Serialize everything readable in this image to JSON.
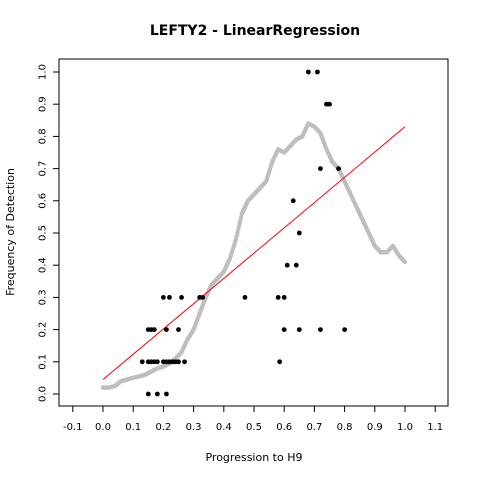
{
  "chart_data": {
    "type": "scatter",
    "title": "LEFTY2 - LinearRegression",
    "xlabel": "Progression to H9",
    "ylabel": "Frequency of Detection",
    "xlim": [
      -0.13,
      1.13
    ],
    "ylim": [
      -0.04,
      1.04
    ],
    "xticks": [
      "-0.1",
      "0.0",
      "0.1",
      "0.2",
      "0.3",
      "0.4",
      "0.5",
      "0.6",
      "0.7",
      "0.8",
      "0.9",
      "1.0",
      "1.1"
    ],
    "yticks": [
      "0.0",
      "0.1",
      "0.2",
      "0.3",
      "0.4",
      "0.5",
      "0.6",
      "0.7",
      "0.8",
      "0.9",
      "1.0"
    ],
    "grid": false,
    "legend": "none",
    "colors": {
      "points": "#000000",
      "smooth": "#bebebe",
      "regression": "#ff0000"
    },
    "points": [
      [
        0.15,
        0.0
      ],
      [
        0.18,
        0.0
      ],
      [
        0.21,
        0.0
      ],
      [
        0.13,
        0.1
      ],
      [
        0.15,
        0.1
      ],
      [
        0.16,
        0.1
      ],
      [
        0.17,
        0.1
      ],
      [
        0.18,
        0.1
      ],
      [
        0.2,
        0.1
      ],
      [
        0.21,
        0.1
      ],
      [
        0.22,
        0.1
      ],
      [
        0.23,
        0.1
      ],
      [
        0.24,
        0.1
      ],
      [
        0.25,
        0.1
      ],
      [
        0.27,
        0.1
      ],
      [
        0.585,
        0.1
      ],
      [
        0.15,
        0.2
      ],
      [
        0.16,
        0.2
      ],
      [
        0.17,
        0.2
      ],
      [
        0.21,
        0.2
      ],
      [
        0.25,
        0.2
      ],
      [
        0.6,
        0.2
      ],
      [
        0.65,
        0.2
      ],
      [
        0.72,
        0.2
      ],
      [
        0.8,
        0.2
      ],
      [
        0.2,
        0.3
      ],
      [
        0.22,
        0.3
      ],
      [
        0.26,
        0.3
      ],
      [
        0.32,
        0.3
      ],
      [
        0.33,
        0.3
      ],
      [
        0.47,
        0.3
      ],
      [
        0.58,
        0.3
      ],
      [
        0.6,
        0.3
      ],
      [
        0.61,
        0.4
      ],
      [
        0.64,
        0.4
      ],
      [
        0.65,
        0.5
      ],
      [
        0.63,
        0.6
      ],
      [
        0.72,
        0.7
      ],
      [
        0.78,
        0.7
      ],
      [
        0.74,
        0.9
      ],
      [
        0.75,
        0.9
      ],
      [
        0.68,
        1.0
      ],
      [
        0.71,
        1.0
      ]
    ],
    "smooth": [
      [
        0.0,
        0.02
      ],
      [
        0.02,
        0.02
      ],
      [
        0.04,
        0.025
      ],
      [
        0.06,
        0.04
      ],
      [
        0.08,
        0.045
      ],
      [
        0.1,
        0.05
      ],
      [
        0.12,
        0.055
      ],
      [
        0.14,
        0.06
      ],
      [
        0.16,
        0.07
      ],
      [
        0.18,
        0.08
      ],
      [
        0.2,
        0.085
      ],
      [
        0.22,
        0.095
      ],
      [
        0.24,
        0.11
      ],
      [
        0.26,
        0.13
      ],
      [
        0.28,
        0.17
      ],
      [
        0.3,
        0.2
      ],
      [
        0.32,
        0.25
      ],
      [
        0.34,
        0.3
      ],
      [
        0.36,
        0.34
      ],
      [
        0.38,
        0.36
      ],
      [
        0.4,
        0.38
      ],
      [
        0.42,
        0.42
      ],
      [
        0.44,
        0.48
      ],
      [
        0.46,
        0.56
      ],
      [
        0.48,
        0.6
      ],
      [
        0.5,
        0.62
      ],
      [
        0.52,
        0.64
      ],
      [
        0.54,
        0.66
      ],
      [
        0.56,
        0.72
      ],
      [
        0.58,
        0.76
      ],
      [
        0.6,
        0.75
      ],
      [
        0.62,
        0.77
      ],
      [
        0.64,
        0.79
      ],
      [
        0.66,
        0.8
      ],
      [
        0.68,
        0.84
      ],
      [
        0.7,
        0.83
      ],
      [
        0.72,
        0.81
      ],
      [
        0.74,
        0.76
      ],
      [
        0.76,
        0.72
      ],
      [
        0.78,
        0.7
      ],
      [
        0.8,
        0.66
      ],
      [
        0.82,
        0.62
      ],
      [
        0.84,
        0.58
      ],
      [
        0.86,
        0.54
      ],
      [
        0.88,
        0.5
      ],
      [
        0.9,
        0.46
      ],
      [
        0.92,
        0.44
      ],
      [
        0.94,
        0.44
      ],
      [
        0.96,
        0.46
      ],
      [
        0.98,
        0.43
      ],
      [
        1.0,
        0.41
      ]
    ],
    "regression": {
      "x": [
        0.0,
        1.0
      ],
      "y": [
        0.045,
        0.83
      ]
    }
  }
}
